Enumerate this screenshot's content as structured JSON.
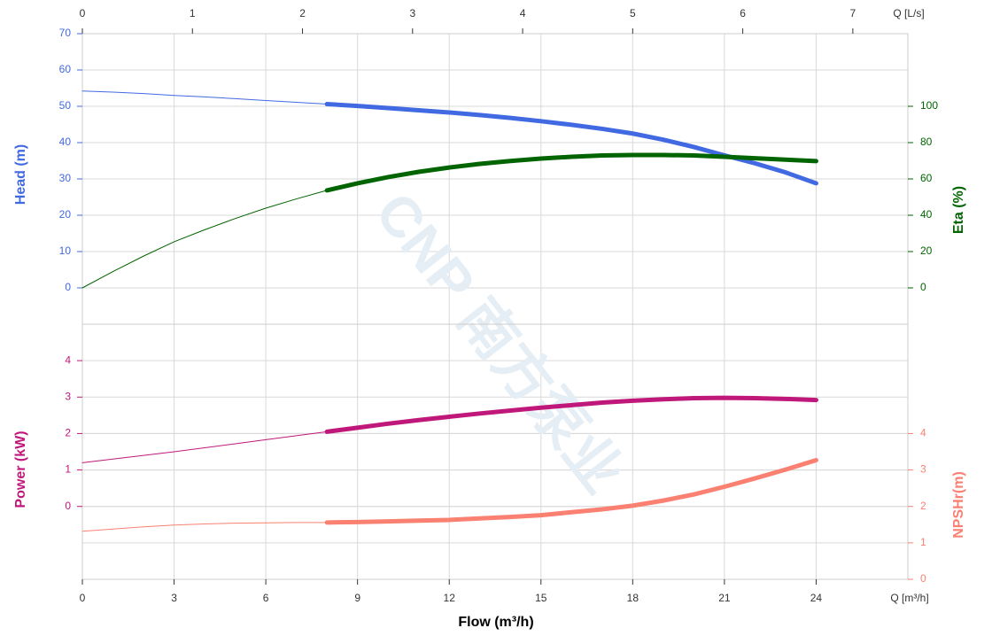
{
  "chart_data": {
    "type": "line",
    "watermark": "CNP 南方泵业",
    "xlabel": "Flow (m³/h)",
    "xunit": "Q [m³/h]",
    "xlim": [
      0,
      27
    ],
    "xticks": [
      0,
      3,
      6,
      9,
      12,
      15,
      18,
      21,
      24
    ],
    "x2unit": "Q [L/s]",
    "x2lim": [
      0,
      7.5
    ],
    "x2ticks": [
      0,
      1,
      2,
      3,
      4,
      5,
      6,
      7
    ],
    "grid": true,
    "duty_range": [
      8,
      24
    ],
    "x": [
      0,
      1,
      2,
      3,
      4,
      5,
      6,
      7,
      8,
      9,
      10,
      11,
      12,
      13,
      14,
      15,
      16,
      17,
      18,
      19,
      20,
      21,
      22,
      23,
      24
    ],
    "panels": [
      {
        "ylabel": "Head (m)",
        "ycolor": "#4169e1",
        "ylim": [
          -10,
          70
        ],
        "yticks": [
          0,
          10,
          20,
          30,
          40,
          50,
          60,
          70
        ],
        "y2label": "Eta (%)",
        "y2color": "#006400",
        "y2lim": [
          -20,
          140
        ],
        "y2ticks": [
          0,
          20,
          40,
          60,
          80,
          100
        ],
        "series": [
          {
            "name": "Head",
            "color": "#4169e1",
            "axis": "y",
            "values": [
              54.2,
              53.9,
              53.5,
              53.0,
              52.6,
              52.1,
              51.6,
              51.1,
              50.6,
              50.1,
              49.5,
              48.9,
              48.3,
              47.6,
              46.8,
              45.9,
              44.9,
              43.8,
              42.5,
              40.8,
              38.8,
              36.5,
              34.3,
              31.8,
              28.8
            ]
          },
          {
            "name": "Eta",
            "color": "#006400",
            "axis": "y2",
            "values": [
              0,
              9,
              17.5,
              25.4,
              32,
              38.2,
              43.9,
              49,
              53.7,
              57.6,
              61,
              63.9,
              66.3,
              68.3,
              69.9,
              71.2,
              72.2,
              72.9,
              73.2,
              73.2,
              72.9,
              72.2,
              71.4,
              70.6,
              69.8
            ]
          }
        ]
      },
      {
        "ylabel": "Power (kW)",
        "ycolor": "#c0187a",
        "ylim": [
          -2,
          5
        ],
        "yticks": [
          0,
          1,
          2,
          3,
          4
        ],
        "y2label": "NPSHr(m)",
        "y2color": "#fa8072",
        "y2lim": [
          0,
          7
        ],
        "y2ticks": [
          0,
          1,
          2,
          3,
          4
        ],
        "series": [
          {
            "name": "Power",
            "color": "#c0187a",
            "axis": "y",
            "values": [
              1.2,
              1.3,
              1.4,
              1.5,
              1.61,
              1.72,
              1.83,
              1.94,
              2.05,
              2.16,
              2.27,
              2.37,
              2.46,
              2.55,
              2.63,
              2.71,
              2.78,
              2.85,
              2.9,
              2.94,
              2.97,
              2.98,
              2.97,
              2.95,
              2.92
            ]
          },
          {
            "name": "NPSHr",
            "color": "#fa8072",
            "axis": "y2",
            "values": [
              1.32,
              1.38,
              1.44,
              1.49,
              1.52,
              1.54,
              1.55,
              1.56,
              1.56,
              1.57,
              1.59,
              1.61,
              1.63,
              1.67,
              1.71,
              1.76,
              1.84,
              1.92,
              2.02,
              2.16,
              2.33,
              2.54,
              2.77,
              3.01,
              3.27
            ]
          }
        ]
      }
    ]
  }
}
